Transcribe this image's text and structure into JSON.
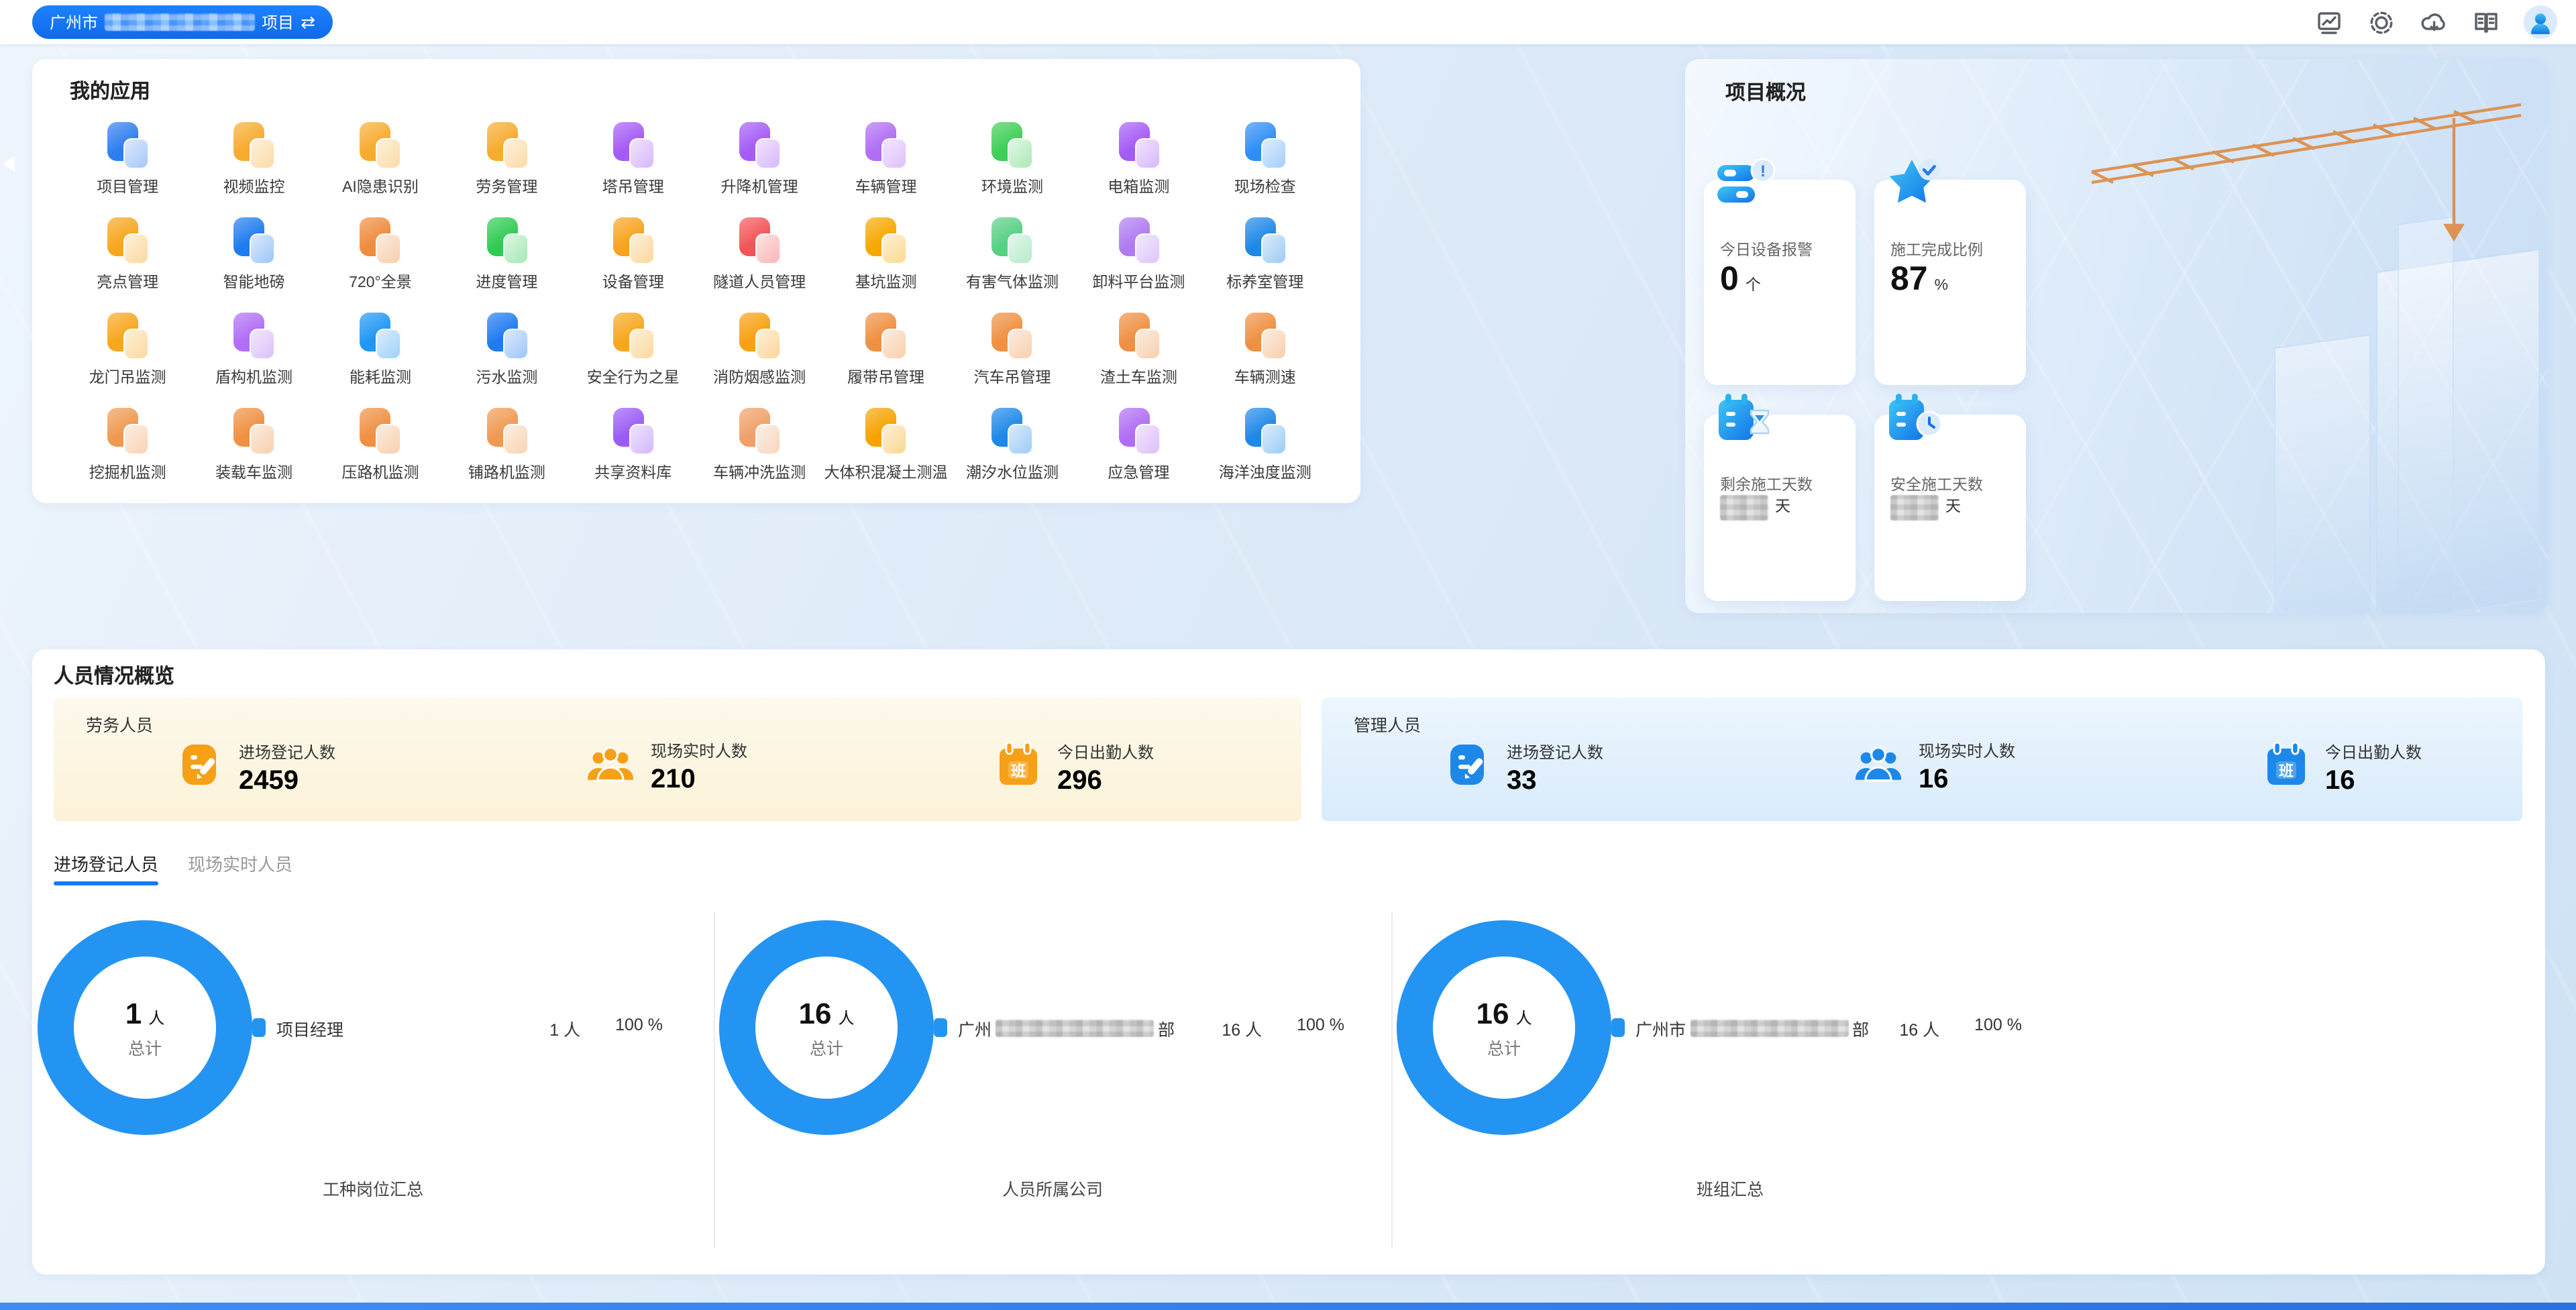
{
  "topbar": {
    "project": {
      "prefix": "广州市",
      "suffix": "项目",
      "redacted": true,
      "swap_icon": "⇄"
    },
    "icons": [
      "monitor-icon",
      "settings-gear-icon",
      "cloud-download-icon",
      "handbook-icon",
      "user-avatar"
    ]
  },
  "apps": {
    "title": "我的应用",
    "items": [
      {
        "label": "项目管理",
        "color": "#2f7ef0"
      },
      {
        "label": "视频监控",
        "color": "#f7ab2f"
      },
      {
        "label": "AI隐患识别",
        "color": "#f7ab2f"
      },
      {
        "label": "劳务管理",
        "color": "#f7ab2f"
      },
      {
        "label": "塔吊管理",
        "color": "#a55bf5"
      },
      {
        "label": "升降机管理",
        "color": "#a55bf5"
      },
      {
        "label": "车辆管理",
        "color": "#b06ef5"
      },
      {
        "label": "环境监测",
        "color": "#3fce56"
      },
      {
        "label": "电箱监测",
        "color": "#a55bf5"
      },
      {
        "label": "现场检查",
        "color": "#2f8ef5"
      },
      {
        "label": "亮点管理",
        "color": "#f7a71e"
      },
      {
        "label": "智能地磅",
        "color": "#1f7bf0"
      },
      {
        "label": "720°全景",
        "color": "#ef8c3e"
      },
      {
        "label": "进度管理",
        "color": "#2ecc52"
      },
      {
        "label": "设备管理",
        "color": "#f7a31e"
      },
      {
        "label": "隧道人员管理",
        "color": "#f25558"
      },
      {
        "label": "基坑监测",
        "color": "#f7a800"
      },
      {
        "label": "有害气体监测",
        "color": "#57d084"
      },
      {
        "label": "卸料平台监测",
        "color": "#b07bf2"
      },
      {
        "label": "标养室管理",
        "color": "#1e88e8"
      },
      {
        "label": "龙门吊监测",
        "color": "#f7a71e"
      },
      {
        "label": "盾构机监测",
        "color": "#b06ef5"
      },
      {
        "label": "能耗监测",
        "color": "#2196f3"
      },
      {
        "label": "污水监测",
        "color": "#1f7bf0"
      },
      {
        "label": "安全行为之星",
        "color": "#f7a71e"
      },
      {
        "label": "消防烟感监测",
        "color": "#f7a113"
      },
      {
        "label": "履带吊管理",
        "color": "#ef9042"
      },
      {
        "label": "汽车吊管理",
        "color": "#ef9042"
      },
      {
        "label": "渣土车监测",
        "color": "#ef9042"
      },
      {
        "label": "车辆测速",
        "color": "#ef9042"
      },
      {
        "label": "挖掘机监测",
        "color": "#ef9a52"
      },
      {
        "label": "装载车监测",
        "color": "#ef9042"
      },
      {
        "label": "压路机监测",
        "color": "#ef9042"
      },
      {
        "label": "铺路机监测",
        "color": "#ef9a52"
      },
      {
        "label": "共享资料库",
        "color": "#9b5cf6"
      },
      {
        "label": "车辆冲洗监测",
        "color": "#f0a068"
      },
      {
        "label": "大体积混凝土测温",
        "color": "#f5a300"
      },
      {
        "label": "潮汐水位监测",
        "color": "#1e88e8"
      },
      {
        "label": "应急管理",
        "color": "#b06ef5"
      },
      {
        "label": "海洋浊度监测",
        "color": "#1e88e8"
      }
    ]
  },
  "overview": {
    "title": "项目概况",
    "cards": [
      {
        "label": "今日设备报警",
        "value": "0",
        "unit": "个",
        "icon": "device-alarm-icon",
        "redacted": false
      },
      {
        "label": "施工完成比例",
        "value": "87",
        "unit": "%",
        "icon": "completion-star-icon",
        "redacted": false
      },
      {
        "label": "剩余施工天数",
        "value": "",
        "unit": "天",
        "icon": "remaining-days-icon",
        "redacted": true
      },
      {
        "label": "安全施工天数",
        "value": "",
        "unit": "天",
        "icon": "safe-days-icon",
        "redacted": true
      }
    ]
  },
  "personnel": {
    "title": "人员情况概览",
    "groups": [
      {
        "name": "劳务人员",
        "theme": "orange",
        "color": "#f5a017",
        "stats": [
          {
            "label": "进场登记人数",
            "value": "2459",
            "icon": "register-icon"
          },
          {
            "label": "现场实时人数",
            "value": "210",
            "icon": "people-icon"
          },
          {
            "label": "今日出勤人数",
            "value": "296",
            "icon": "attendance-calendar-icon"
          }
        ]
      },
      {
        "name": "管理人员",
        "theme": "blue",
        "color": "#1e88e8",
        "stats": [
          {
            "label": "进场登记人数",
            "value": "33",
            "icon": "register-icon"
          },
          {
            "label": "现场实时人数",
            "value": "16",
            "icon": "people-icon"
          },
          {
            "label": "今日出勤人数",
            "value": "16",
            "icon": "attendance-calendar-icon"
          }
        ]
      }
    ],
    "tabs": [
      {
        "label": "进场登记人员",
        "active": true
      },
      {
        "label": "现场实时人员",
        "active": false
      }
    ]
  },
  "charts": [
    {
      "total": "1",
      "unit": "人",
      "center_label": "总计",
      "legend_prefix": "",
      "legend_label": "项目经理",
      "legend_suffix": "",
      "legend_redacted": false,
      "count": "1 人",
      "pct": "100 %",
      "caption": "工种岗位汇总"
    },
    {
      "total": "16",
      "unit": "人",
      "center_label": "总计",
      "legend_prefix": "广州",
      "legend_label": "",
      "legend_suffix": "部",
      "legend_redacted": true,
      "count": "16 人",
      "pct": "100 %",
      "caption": "人员所属公司"
    },
    {
      "total": "16",
      "unit": "人",
      "center_label": "总计",
      "legend_prefix": "广州市",
      "legend_label": "",
      "legend_suffix": "部",
      "legend_redacted": true,
      "count": "16 人",
      "pct": "100 %",
      "caption": "班组汇总"
    }
  ],
  "chart_data": [
    {
      "type": "pie",
      "title": "工种岗位汇总",
      "unit": "人",
      "total": 1,
      "center_label": "总计",
      "legend_position": "right",
      "slices": [
        {
          "label": "项目经理",
          "value": 1,
          "pct": 100,
          "color": "#2494f2"
        }
      ]
    },
    {
      "type": "pie",
      "title": "人员所属公司",
      "unit": "人",
      "total": 16,
      "center_label": "总计",
      "legend_position": "right",
      "slices": [
        {
          "label_prefix": "广州",
          "label_suffix": "部",
          "label_redacted": true,
          "value": 16,
          "pct": 100,
          "color": "#2494f2"
        }
      ]
    },
    {
      "type": "pie",
      "title": "班组汇总",
      "unit": "人",
      "total": 16,
      "center_label": "总计",
      "legend_position": "right",
      "slices": [
        {
          "label_prefix": "广州市",
          "label_suffix": "部",
          "label_redacted": true,
          "value": 16,
          "pct": 100,
          "color": "#2494f2"
        }
      ]
    }
  ],
  "colors": {
    "accent": "#1677ff",
    "donut": "#2494f2",
    "labor_theme": "#f5a017",
    "management_theme": "#1e88e8"
  }
}
